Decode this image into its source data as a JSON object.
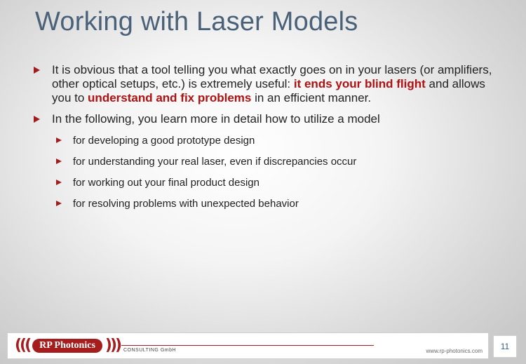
{
  "slide": {
    "title": "Working with Laser Models",
    "bullets": [
      {
        "part1": "It is obvious that a tool telling you what exactly goes on in your lasers (or amplifiers, other optical setups, etc.) is extremely useful: ",
        "highlight1": "it ends your blind flight",
        "part2": " and allows you to ",
        "highlight2": "understand and fix problems",
        "part3": " in an efficient manner."
      },
      {
        "text": "In the following, you learn more in detail how to utilize a model",
        "subitems": [
          "for developing a good prototype design",
          "for understanding your real laser, even if discrepancies occur",
          "for working out your final product design",
          "for resolving problems with unexpected behavior"
        ]
      }
    ],
    "page_number": "11"
  },
  "footer": {
    "logo_text": "RP Photonics",
    "logo_left": "(((",
    "logo_right": ")))",
    "consulting": "CONSULTING GmbH",
    "url": "www.rp-photonics.com"
  },
  "colors": {
    "accent": "#a51d1d",
    "title": "#4a6279"
  }
}
